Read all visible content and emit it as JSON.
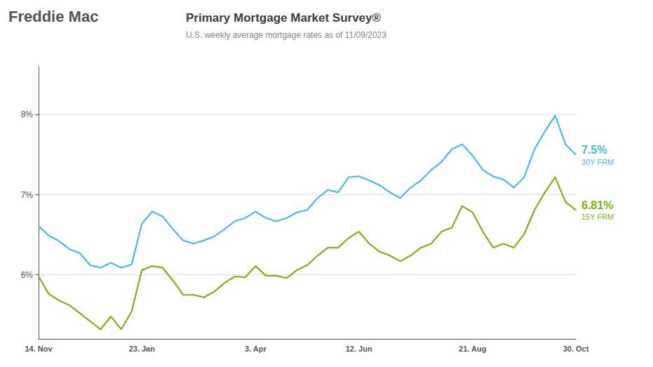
{
  "chart_data": {
    "type": "line",
    "title": "Primary Mortgage Market Survey®",
    "subtitle": "U.S. weekly average mortgage rates as of 11/09/2023",
    "categories": [
      "14. Nov",
      null,
      null,
      null,
      null,
      null,
      null,
      null,
      null,
      null,
      "23. Jan",
      null,
      null,
      null,
      null,
      null,
      null,
      null,
      null,
      null,
      null,
      "3. Apr",
      null,
      null,
      null,
      null,
      null,
      null,
      null,
      null,
      null,
      "12. Jun",
      null,
      null,
      null,
      null,
      null,
      null,
      null,
      null,
      null,
      null,
      "21. Aug",
      null,
      null,
      null,
      null,
      null,
      null,
      null,
      null,
      null,
      "30. Oct"
    ],
    "series": [
      {
        "name": "30Y FRM",
        "color": "#4db8e8",
        "values": [
          6.61,
          6.49,
          6.42,
          6.32,
          6.27,
          6.12,
          6.09,
          6.15,
          6.09,
          6.13,
          6.64,
          6.79,
          6.73,
          6.57,
          6.43,
          6.39,
          6.43,
          6.48,
          6.57,
          6.67,
          6.71,
          6.79,
          6.71,
          6.67,
          6.71,
          6.78,
          6.81,
          6.96,
          7.06,
          7.03,
          7.22,
          7.23,
          7.18,
          7.12,
          7.03,
          6.96,
          7.09,
          7.18,
          7.31,
          7.41,
          7.57,
          7.63,
          7.49,
          7.31,
          7.23,
          7.19,
          7.09,
          7.22,
          7.57,
          7.79,
          7.99,
          7.63,
          7.5
        ]
      },
      {
        "name": "15Y FRM",
        "color": "#7ab317",
        "values": [
          5.98,
          5.76,
          5.68,
          5.62,
          5.52,
          5.42,
          5.32,
          5.48,
          5.32,
          5.54,
          6.06,
          6.11,
          6.09,
          5.93,
          5.75,
          5.75,
          5.72,
          5.79,
          5.9,
          5.98,
          5.97,
          6.11,
          5.99,
          5.99,
          5.96,
          6.06,
          6.12,
          6.24,
          6.34,
          6.34,
          6.46,
          6.54,
          6.39,
          6.29,
          6.24,
          6.17,
          6.24,
          6.34,
          6.39,
          6.54,
          6.59,
          6.86,
          6.78,
          6.54,
          6.34,
          6.39,
          6.34,
          6.51,
          6.81,
          7.03,
          7.22,
          6.91,
          6.81
        ]
      }
    ],
    "ylim": [
      5.2,
      8.6
    ],
    "yticks": [
      {
        "value": 6.0,
        "label": "6%"
      },
      {
        "value": 7.0,
        "label": "7%"
      },
      {
        "value": 8.0,
        "label": "8%"
      }
    ],
    "grid": true,
    "annotations": [
      {
        "text": "7.5%",
        "series": "30Y FRM",
        "value": 7.5
      },
      {
        "text": "6.81%",
        "series": "15Y FRM",
        "value": 6.81
      },
      {
        "text": "Freddie Mac"
      }
    ]
  }
}
